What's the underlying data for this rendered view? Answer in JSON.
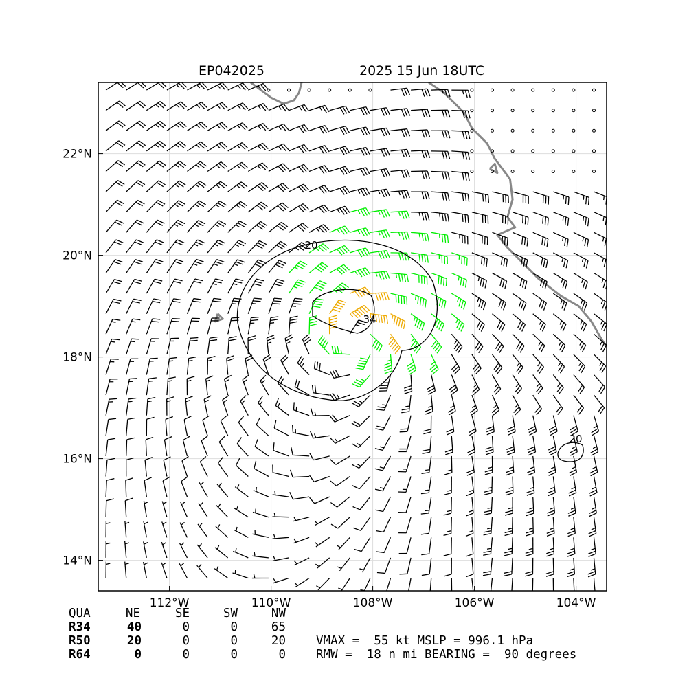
{
  "title_left": "EP042025",
  "title_right": "2025 15 Jun 18UTC",
  "colors": {
    "wind_lt34": "#000000",
    "wind_34_50": "#00ee00",
    "wind_50_64": "#eeaa00",
    "coast": "#888888",
    "contour": "#000000"
  },
  "map": {
    "lon_range": [
      -113.4,
      -103.4
    ],
    "lat_range": [
      13.4,
      23.4
    ],
    "center_lon": -108.3,
    "center_lat": 18.4,
    "lon_ticks": [
      "112°W",
      "110°W",
      "108°W",
      "106°W",
      "104°W"
    ],
    "lat_ticks": [
      "22°N",
      "20°N",
      "18°N",
      "16°N",
      "14°N"
    ],
    "contour_labels": [
      "20",
      "34",
      "20"
    ],
    "grid": true
  },
  "chart_data": {
    "type": "wind barb map",
    "title": "EP042025  2025 15 Jun 18UTC",
    "xlabel": "",
    "ylabel": "",
    "xlim": [
      -113.4,
      -103.4
    ],
    "ylim": [
      13.4,
      23.4
    ],
    "contour_levels_kt": [
      20,
      34
    ]
  },
  "radii": {
    "header": [
      "QUA",
      "NE",
      "SE",
      "SW",
      "NW"
    ],
    "rows": [
      {
        "label": "R34",
        "values": [
          "40",
          "0",
          "0",
          "65"
        ]
      },
      {
        "label": "R50",
        "values": [
          "20",
          "0",
          "0",
          "20"
        ]
      },
      {
        "label": "R64",
        "values": [
          "0",
          "0",
          "0",
          "0"
        ]
      }
    ]
  },
  "stats": {
    "line1": "VMAX =  55 kt MSLP = 996.1 hPa",
    "line2": "RMW =  18 n mi BEARING =  90 degrees"
  }
}
